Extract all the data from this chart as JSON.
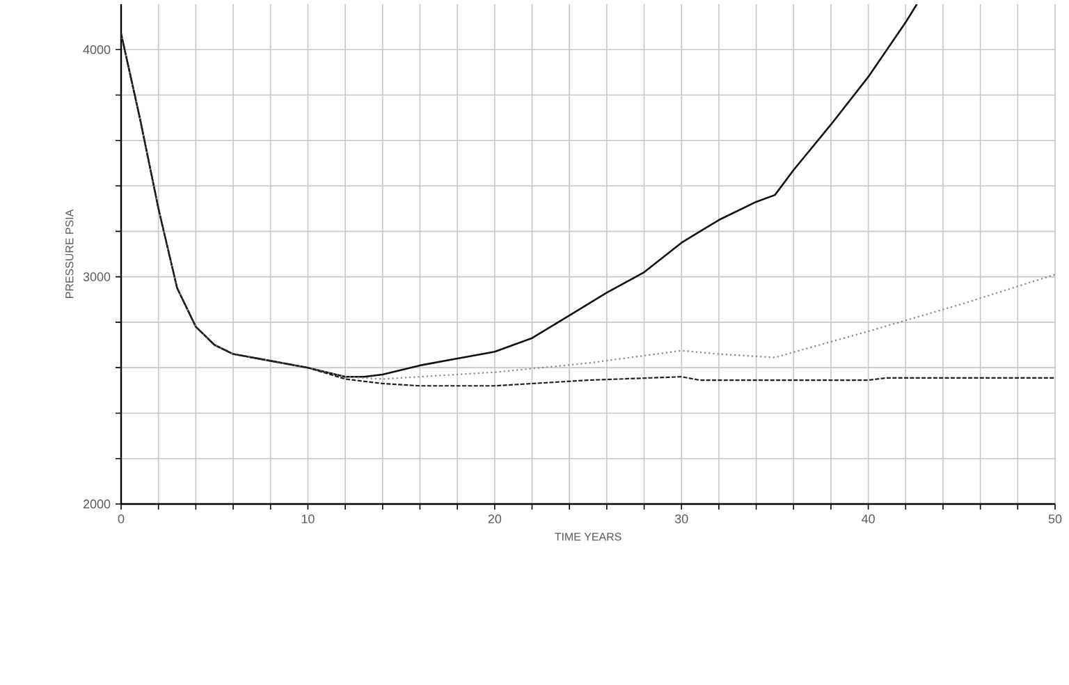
{
  "chart_data": {
    "type": "line",
    "xlabel": "TIME  YEARS",
    "ylabel": "PRESSURE   PSIA",
    "xlim": [
      0,
      50
    ],
    "ylim": [
      2000,
      4200
    ],
    "xticks": [
      0,
      {
        "value": 2,
        "label": null
      },
      {
        "value": 4,
        "label": null
      },
      {
        "value": 6,
        "label": null
      },
      {
        "value": 8,
        "label": null
      },
      10,
      {
        "value": 12,
        "label": null
      },
      {
        "value": 14,
        "label": null
      },
      {
        "value": 16,
        "label": null
      },
      {
        "value": 18,
        "label": null
      },
      20,
      {
        "value": 22,
        "label": null
      },
      {
        "value": 24,
        "label": null
      },
      {
        "value": 26,
        "label": null
      },
      {
        "value": 28,
        "label": null
      },
      30,
      {
        "value": 32,
        "label": null
      },
      {
        "value": 34,
        "label": null
      },
      {
        "value": 36,
        "label": null
      },
      {
        "value": 38,
        "label": null
      },
      40,
      {
        "value": 42,
        "label": null
      },
      {
        "value": 44,
        "label": null
      },
      {
        "value": 46,
        "label": null
      },
      {
        "value": 48,
        "label": null
      },
      50
    ],
    "yticks": [
      2000,
      {
        "value": 2200,
        "label": null
      },
      {
        "value": 2400,
        "label": null
      },
      {
        "value": 2600,
        "label": null
      },
      {
        "value": 2800,
        "label": null
      },
      3000,
      {
        "value": 3200,
        "label": null
      },
      {
        "value": 3400,
        "label": null
      },
      {
        "value": 3600,
        "label": null
      },
      {
        "value": 3800,
        "label": null
      },
      4000
    ],
    "grid": true,
    "marker": "none",
    "series": [
      {
        "color": "#111111",
        "line_style": "solid",
        "x": [
          0,
          1,
          2,
          3,
          4,
          5,
          6,
          8,
          10,
          12,
          13,
          14,
          16,
          18,
          20,
          22,
          24,
          26,
          28,
          30,
          32,
          34,
          35,
          36,
          38,
          40,
          42,
          42.6
        ],
        "values": [
          4070,
          3700,
          3300,
          2950,
          2780,
          2700,
          2660,
          2630,
          2600,
          2560,
          2560,
          2570,
          2610,
          2640,
          2670,
          2730,
          2830,
          2930,
          3020,
          3150,
          3250,
          3330,
          3360,
          3470,
          3670,
          3880,
          4120,
          4200
        ]
      },
      {
        "color": "#888888",
        "line_style": "dotted",
        "x": [
          0,
          1,
          2,
          3,
          4,
          5,
          6,
          8,
          10,
          12,
          14,
          16,
          20,
          25,
          30,
          32,
          35,
          40,
          45,
          50
        ],
        "values": [
          4070,
          3700,
          3300,
          2950,
          2780,
          2700,
          2660,
          2630,
          2600,
          2560,
          2550,
          2560,
          2580,
          2620,
          2675,
          2660,
          2645,
          2760,
          2880,
          3010
        ]
      },
      {
        "color": "#222222",
        "line_style": "dashed",
        "x": [
          0,
          1,
          2,
          3,
          4,
          5,
          6,
          8,
          10,
          12,
          14,
          16,
          20,
          25,
          30,
          31,
          40,
          41,
          50
        ],
        "values": [
          4070,
          3700,
          3300,
          2950,
          2780,
          2700,
          2660,
          2630,
          2600,
          2550,
          2530,
          2520,
          2520,
          2545,
          2560,
          2545,
          2545,
          2555,
          2555
        ]
      }
    ]
  }
}
